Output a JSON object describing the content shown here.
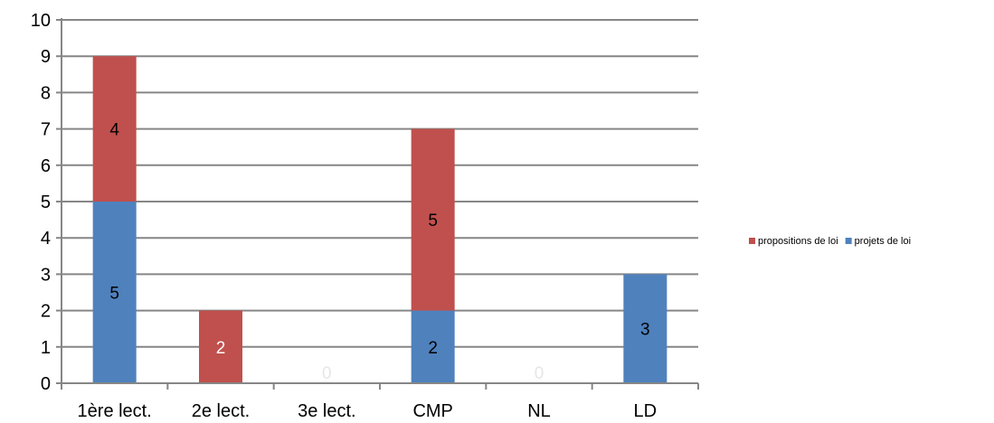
{
  "chart_data": {
    "type": "bar",
    "stacked": true,
    "categories": [
      "1ère lect.",
      "2e lect.",
      "3e lect.",
      "CMP",
      "NL",
      "LD"
    ],
    "series": [
      {
        "name": "projets de loi",
        "color": "#4F81BD",
        "values": [
          5,
          0,
          0,
          2,
          0,
          3
        ]
      },
      {
        "name": "propositions de loi",
        "color": "#C0504D",
        "values": [
          4,
          2,
          0,
          5,
          0,
          0
        ]
      }
    ],
    "data_labels": {
      "projets de loi": [
        "5",
        "",
        "0",
        "2",
        "0",
        "3"
      ],
      "propositions de loi": [
        "4",
        "2",
        "",
        "5",
        "",
        ""
      ]
    },
    "ylim": [
      0,
      10
    ],
    "yticks": [
      "0",
      "1",
      "2",
      "3",
      "4",
      "5",
      "6",
      "7",
      "8",
      "9",
      "10"
    ],
    "grid": true,
    "legend": {
      "placement": "right",
      "entries": [
        "propositions de loi",
        "projets de loi"
      ]
    }
  }
}
